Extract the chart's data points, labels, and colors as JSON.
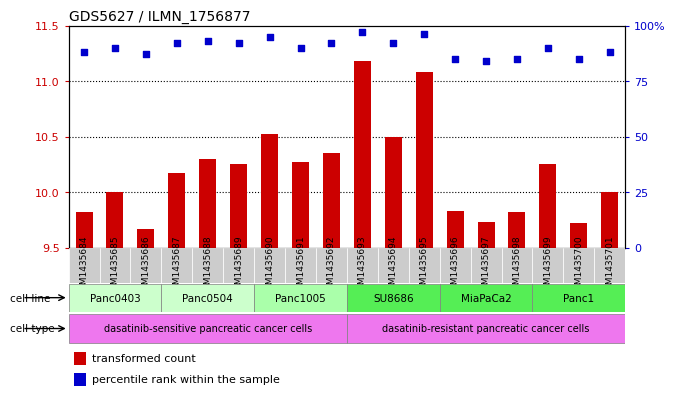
{
  "title": "GDS5627 / ILMN_1756877",
  "samples": [
    "GSM1435684",
    "GSM1435685",
    "GSM1435686",
    "GSM1435687",
    "GSM1435688",
    "GSM1435689",
    "GSM1435690",
    "GSM1435691",
    "GSM1435692",
    "GSM1435693",
    "GSM1435694",
    "GSM1435695",
    "GSM1435696",
    "GSM1435697",
    "GSM1435698",
    "GSM1435699",
    "GSM1435700",
    "GSM1435701"
  ],
  "transformed_counts": [
    9.82,
    10.0,
    9.67,
    10.17,
    10.3,
    10.25,
    10.52,
    10.27,
    10.35,
    11.18,
    10.5,
    11.08,
    9.83,
    9.73,
    9.82,
    10.25,
    9.72,
    10.0
  ],
  "percentile_ranks": [
    88,
    90,
    87,
    92,
    93,
    92,
    95,
    90,
    92,
    97,
    92,
    96,
    85,
    84,
    85,
    90,
    85,
    88
  ],
  "bar_color": "#cc0000",
  "dot_color": "#0000cc",
  "ylim_left": [
    9.5,
    11.5
  ],
  "ylim_right": [
    0,
    100
  ],
  "yticks_left": [
    9.5,
    10.0,
    10.5,
    11.0,
    11.5
  ],
  "yticks_right": [
    0,
    25,
    50,
    75,
    100
  ],
  "ytick_labels_right": [
    "0",
    "25",
    "50",
    "75",
    "100%"
  ],
  "grid_values": [
    10.0,
    10.5,
    11.0
  ],
  "cell_lines": [
    {
      "name": "Panc0403",
      "start": 0,
      "end": 2,
      "color": "#ccffcc"
    },
    {
      "name": "Panc0504",
      "start": 3,
      "end": 5,
      "color": "#ccffcc"
    },
    {
      "name": "Panc1005",
      "start": 6,
      "end": 8,
      "color": "#aaffaa"
    },
    {
      "name": "SU8686",
      "start": 9,
      "end": 11,
      "color": "#55ee55"
    },
    {
      "name": "MiaPaCa2",
      "start": 12,
      "end": 14,
      "color": "#55ee55"
    },
    {
      "name": "Panc1",
      "start": 15,
      "end": 17,
      "color": "#55ee55"
    }
  ],
  "cell_types": [
    {
      "name": "dasatinib-sensitive pancreatic cancer cells",
      "start": 0,
      "end": 8,
      "color": "#ee77ee"
    },
    {
      "name": "dasatinib-resistant pancreatic cancer cells",
      "start": 9,
      "end": 17,
      "color": "#ee77ee"
    }
  ],
  "legend_items": [
    {
      "label": "transformed count",
      "color": "#cc0000"
    },
    {
      "label": "percentile rank within the sample",
      "color": "#0000cc"
    }
  ],
  "bg_color": "#ffffff",
  "sample_bg_color": "#cccccc"
}
